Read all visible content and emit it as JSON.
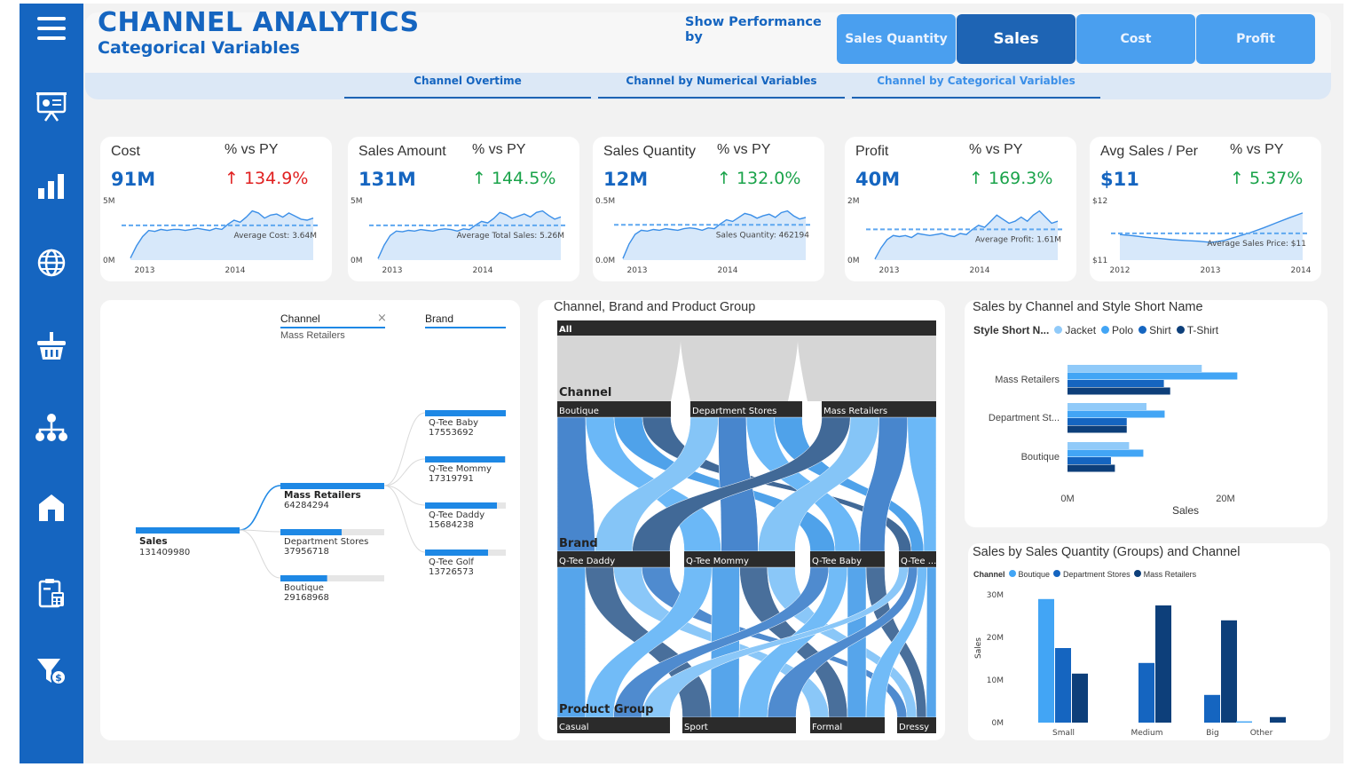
{
  "header": {
    "title": "CHANNEL ANALYTICS",
    "subtitle": "Categorical Variables",
    "show_performance_label": "Show Performance by"
  },
  "metric_buttons": [
    {
      "label": "Sales Quantity",
      "active": false
    },
    {
      "label": "Sales",
      "active": true
    },
    {
      "label": "Cost",
      "active": false
    },
    {
      "label": "Profit",
      "active": false
    }
  ],
  "nav_tabs": [
    {
      "label": "Channel Overtime"
    },
    {
      "label": "Channel by Numerical Variables"
    },
    {
      "label": "Channel by Categorical Variables"
    }
  ],
  "sidebar_icons": [
    "presentation-icon",
    "bar-chart-icon",
    "globe-icon",
    "basket-icon",
    "hierarchy-icon",
    "store-icon",
    "calculator-clipboard-icon",
    "filter-money-icon"
  ],
  "kpis": [
    {
      "label": "Cost",
      "value": "91M",
      "pct_label": "% vs PY",
      "pct": "134.9%",
      "trend": "up",
      "pct_color": "#e02020",
      "y_top": "5M",
      "y_bottom": "0M",
      "x_labels": [
        "2013",
        "2014"
      ],
      "avg_label": "Average Cost: 3.64M",
      "series": [
        0.2,
        1.4,
        2.3,
        2.9,
        2.8,
        3.0,
        2.9,
        3.0,
        3.0,
        2.9,
        3.0,
        3.1,
        3.0,
        2.9,
        3.1,
        3.0,
        3.5,
        3.9,
        3.7,
        4.2,
        4.8,
        4.6,
        4.1,
        4.4,
        4.5,
        4.2,
        4.6,
        4.3,
        4.0,
        3.9,
        4.1
      ]
    },
    {
      "label": "Sales Amount",
      "value": "131M",
      "pct_label": "% vs PY",
      "pct": "144.5%",
      "trend": "up",
      "pct_color": "#1aa34a",
      "y_top": "5M",
      "y_bottom": "0M",
      "x_labels": [
        "2013",
        "2014"
      ],
      "avg_label": "Average Total Sales: 5.26M",
      "series": [
        0.2,
        2.0,
        3.3,
        3.9,
        3.8,
        4.0,
        3.9,
        4.1,
        4.0,
        3.9,
        4.1,
        4.2,
        4.1,
        3.9,
        4.2,
        4.1,
        4.7,
        5.2,
        5.0,
        5.6,
        6.4,
        6.1,
        5.6,
        5.9,
        6.2,
        5.8,
        6.4,
        6.6,
        6.0,
        5.5,
        5.8
      ]
    },
    {
      "label": "Sales Quantity",
      "value": "12M",
      "pct_label": "% vs PY",
      "pct": "132.0%",
      "trend": "up",
      "pct_color": "#1aa34a",
      "y_top": "0.5M",
      "y_bottom": "0.0M",
      "x_labels": [
        "2013",
        "2014"
      ],
      "avg_label": "Sales Quantity: 462194",
      "series": [
        0.02,
        0.2,
        0.32,
        0.37,
        0.36,
        0.38,
        0.37,
        0.39,
        0.38,
        0.37,
        0.39,
        0.4,
        0.39,
        0.37,
        0.4,
        0.39,
        0.45,
        0.5,
        0.48,
        0.53,
        0.58,
        0.56,
        0.52,
        0.55,
        0.57,
        0.53,
        0.59,
        0.61,
        0.55,
        0.51,
        0.53
      ]
    },
    {
      "label": "Profit",
      "value": "40M",
      "pct_label": "% vs PY",
      "pct": "169.3%",
      "trend": "up",
      "pct_color": "#1aa34a",
      "y_top": "2M",
      "y_bottom": "0M",
      "x_labels": [
        "2013",
        "2014"
      ],
      "avg_label": "Average Profit: 1.61M",
      "series": [
        0.05,
        0.6,
        1.0,
        1.2,
        1.15,
        1.2,
        1.1,
        1.3,
        1.25,
        1.2,
        1.25,
        1.3,
        1.2,
        1.15,
        1.3,
        1.25,
        1.5,
        1.7,
        1.6,
        1.9,
        2.2,
        2.0,
        1.8,
        1.9,
        2.1,
        1.9,
        2.2,
        2.4,
        2.1,
        1.8,
        1.9
      ]
    },
    {
      "label": "Avg Sales / Per",
      "value": "$11",
      "pct_label": "% vs PY",
      "pct": "5.37%",
      "trend": "up",
      "pct_color": "#1aa34a",
      "y_top": "$12",
      "y_bottom": "$11",
      "x_labels": [
        "2012",
        "2013",
        "2014"
      ],
      "avg_label": "Average Sales Price: $11",
      "series": [
        11.25,
        11.22,
        11.18,
        11.15,
        11.12,
        11.1,
        11.08,
        11.05,
        11.1,
        11.2,
        11.3,
        11.42,
        11.55,
        11.68,
        11.8
      ]
    }
  ],
  "decomp": {
    "filter_channel_label": "Channel",
    "filter_channel_value": "Mass Retailers",
    "filter_brand_label": "Brand",
    "root": {
      "name": "Sales",
      "value": "131409980"
    },
    "channels": [
      {
        "name": "Mass Retailers",
        "value": "64284294",
        "share": 1.0
      },
      {
        "name": "Department Stores",
        "value": "37956718",
        "share": 0.59
      },
      {
        "name": "Boutique",
        "value": "29168968",
        "share": 0.45
      }
    ],
    "brands": [
      {
        "name": "Q-Tee Baby",
        "value": "17553692",
        "share": 1.0
      },
      {
        "name": "Q-Tee Mommy",
        "value": "17319791",
        "share": 0.99
      },
      {
        "name": "Q-Tee Daddy",
        "value": "15684238",
        "share": 0.89
      },
      {
        "name": "Q-Tee Golf",
        "value": "13726573",
        "share": 0.78
      }
    ]
  },
  "sankey": {
    "title": "Channel, Brand and Product Group",
    "all_label": "All",
    "level_channel": "Channel",
    "level_brand": "Brand",
    "level_product": "Product Group",
    "channels": [
      "Boutique",
      "Department Stores",
      "Mass Retailers"
    ],
    "brands": [
      "Q-Tee Daddy",
      "Q-Tee Mommy",
      "Q-Tee Baby",
      "Q-Tee ..."
    ],
    "products": [
      "Casual",
      "Sport",
      "Formal",
      "Dressy"
    ]
  },
  "hbar_chart": {
    "title": "Sales by Channel and Style Short Name",
    "legend_title": "Style Short N...",
    "chart_data": {
      "type": "bar",
      "orientation": "horizontal",
      "categories": [
        "Mass Retailers",
        "Department St...",
        "Boutique"
      ],
      "series": [
        {
          "name": "Jacket",
          "color": "#90caf9",
          "values": [
            17.0,
            10.0,
            7.8
          ]
        },
        {
          "name": "Polo",
          "color": "#42a5f5",
          "values": [
            21.5,
            12.3,
            9.6
          ]
        },
        {
          "name": "Shirt",
          "color": "#1565c0",
          "values": [
            12.2,
            7.5,
            5.5
          ]
        },
        {
          "name": "T-Shirt",
          "color": "#0d3f7a",
          "values": [
            13.0,
            7.5,
            6.0
          ]
        }
      ],
      "xlabel": "Sales",
      "x_ticks": [
        "0M",
        "20M"
      ],
      "xlim": [
        0,
        30
      ]
    }
  },
  "vbar_chart": {
    "title": "Sales by Sales Quantity (Groups) and Channel",
    "legend_title": "Channel",
    "chart_data": {
      "type": "bar",
      "categories": [
        "Small",
        "Medium",
        "Big",
        "Other"
      ],
      "series": [
        {
          "name": "Boutique",
          "color": "#42a5f5",
          "values": [
            29.0,
            0.0,
            0.0,
            0.3
          ]
        },
        {
          "name": "Department Stores",
          "color": "#1565c0",
          "values": [
            17.5,
            14.0,
            6.5,
            0.0
          ]
        },
        {
          "name": "Mass Retailers",
          "color": "#0d3f7a",
          "values": [
            11.5,
            27.5,
            24.0,
            1.3
          ]
        }
      ],
      "ylabel": "Sales",
      "y_ticks": [
        "0M",
        "10M",
        "20M",
        "30M"
      ],
      "ylim": [
        0,
        30
      ]
    }
  }
}
